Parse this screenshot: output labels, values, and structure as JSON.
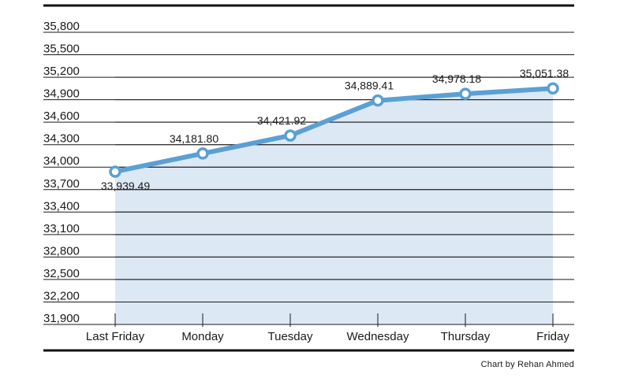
{
  "chart_data": {
    "type": "area",
    "categories": [
      "Last Friday",
      "Monday",
      "Tuesday",
      "Wednesday",
      "Thursday",
      "Friday"
    ],
    "values": [
      33939.49,
      34181.8,
      34421.92,
      34889.41,
      34978.18,
      35051.38
    ],
    "value_labels": [
      "33,939.49",
      "34,181.80",
      "34,421.92",
      "34,889.41",
      "34,978.18",
      "35,051.38"
    ],
    "y_ticks": [
      31900,
      32200,
      32500,
      32800,
      33100,
      33400,
      33700,
      34000,
      34300,
      34600,
      34900,
      35200,
      35500,
      35800
    ],
    "y_tick_labels": [
      "31,900",
      "32,200",
      "32,500",
      "32,800",
      "33,100",
      "33,400",
      "33,700",
      "34,000",
      "34,300",
      "34,600",
      "34,900",
      "35,200",
      "35,500",
      "35,800"
    ],
    "ylim": [
      31900,
      35800
    ],
    "grid": true,
    "line_color": "#5aa0d4",
    "fill_color": "#d9e6f4",
    "xlabel": "",
    "ylabel": ""
  },
  "credit": "Chart by Rehan Ahmed"
}
